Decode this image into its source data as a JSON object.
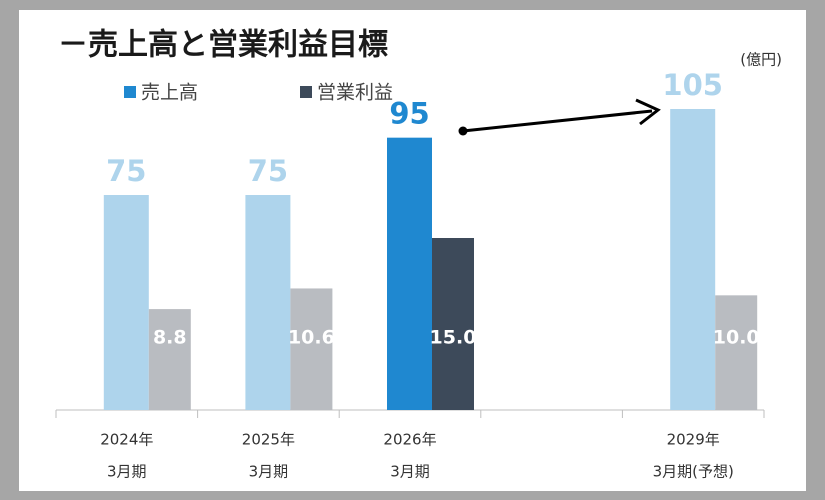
{
  "chart_data": {
    "type": "bar",
    "title": "－売上高と営業利益目標",
    "unit": "(億円)",
    "categories": [
      [
        "2024年",
        "3月期"
      ],
      [
        "2025年",
        "3月期"
      ],
      [
        "2026年",
        "3月期"
      ],
      null,
      [
        "2029年",
        "3月期(予想)"
      ]
    ],
    "series": [
      {
        "name": "売上高",
        "color": "#1f88d0",
        "colors": [
          "#aed4ec",
          "#aed4ec",
          "#1f88d0",
          null,
          "#aed4ec"
        ],
        "values": [
          75,
          75,
          95,
          null,
          105
        ]
      },
      {
        "name": "営業利益",
        "axis": "y2",
        "color": "#3d4a5a",
        "colors": [
          "#b9bcc1",
          "#b9bcc1",
          "#3d4a5a",
          null,
          "#b9bcc1"
        ],
        "values": [
          8.8,
          10.6,
          15.0,
          null,
          10.0
        ],
        "value_labels": [
          "8.8",
          "10.6",
          "15.0",
          null,
          "10.0"
        ]
      }
    ],
    "ylim": [
      0,
      120
    ],
    "y2lim": [
      0,
      30
    ]
  }
}
